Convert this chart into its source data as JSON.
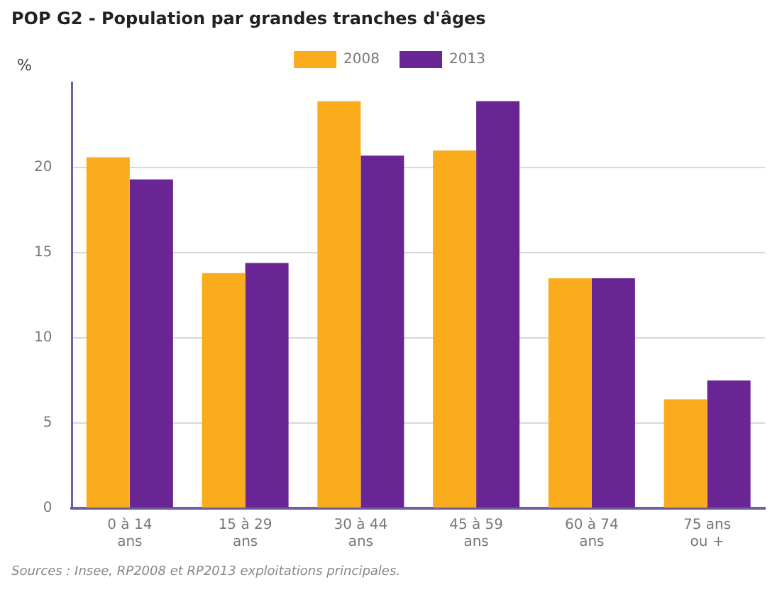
{
  "chart_data": {
    "type": "bar",
    "title": "POP G2 - Population par grandes tranches d'âges",
    "ylabel": "%",
    "categories": [
      "0 à 14\nans",
      "15 à 29\nans",
      "30 à 44\nans",
      "45 à 59\nans",
      "60 à 74\nans",
      "75 ans\nou +"
    ],
    "series": [
      {
        "name": "2008",
        "color": "#fbac1c",
        "values": [
          20.6,
          13.8,
          23.9,
          21.0,
          13.5,
          6.4
        ]
      },
      {
        "name": "2013",
        "color": "#6a2594",
        "values": [
          19.3,
          14.4,
          20.7,
          23.9,
          13.5,
          7.5
        ]
      }
    ],
    "ylim": [
      0,
      25
    ],
    "yticks": [
      0,
      5,
      10,
      15,
      20
    ],
    "grid": "y",
    "legend": "top",
    "annotations": [
      "Sources : Insee, RP2008 et RP2013 exploitations principales."
    ]
  }
}
